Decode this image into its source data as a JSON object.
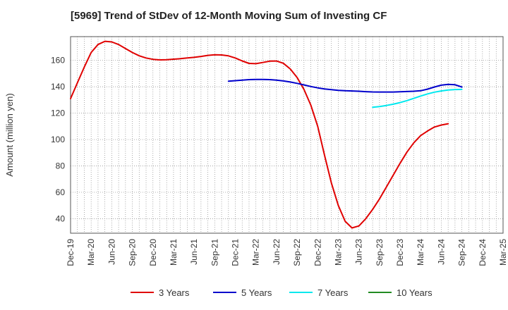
{
  "chart_data": {
    "type": "line",
    "title": "[5969]  Trend of StDev of 12-Month Moving Sum of Investing CF",
    "xlabel": "",
    "ylabel": "Amount (million yen)",
    "ylim": [
      29,
      178
    ],
    "yticks": [
      40,
      60,
      80,
      100,
      120,
      140,
      160
    ],
    "x_tick_labels": [
      "Dec-19",
      "Mar-20",
      "Jun-20",
      "Sep-20",
      "Dec-20",
      "Mar-21",
      "Jun-21",
      "Sep-21",
      "Dec-21",
      "Mar-22",
      "Jun-22",
      "Sep-22",
      "Dec-22",
      "Mar-23",
      "Jun-23",
      "Sep-23",
      "Dec-23",
      "Mar-24",
      "Jun-24",
      "Sep-24",
      "Dec-24",
      "Mar-25"
    ],
    "grid": true,
    "legend_position": "bottom",
    "series": [
      {
        "name": "3 Years",
        "color": "#e00000",
        "points": [
          [
            "Dec-19",
            131
          ],
          [
            "Jan-20",
            143
          ],
          [
            "Feb-20",
            155
          ],
          [
            "Mar-20",
            166
          ],
          [
            "Apr-20",
            172
          ],
          [
            "May-20",
            174.5
          ],
          [
            "Jun-20",
            174
          ],
          [
            "Jul-20",
            172
          ],
          [
            "Aug-20",
            169
          ],
          [
            "Sep-20",
            166
          ],
          [
            "Oct-20",
            163.5
          ],
          [
            "Nov-20",
            161.8
          ],
          [
            "Dec-20",
            160.8
          ],
          [
            "Jan-21",
            160.4
          ],
          [
            "Feb-21",
            160.5
          ],
          [
            "Mar-21",
            160.9
          ],
          [
            "Apr-21",
            161.3
          ],
          [
            "May-21",
            161.8
          ],
          [
            "Jun-21",
            162.3
          ],
          [
            "Jul-21",
            163
          ],
          [
            "Aug-21",
            163.8
          ],
          [
            "Sep-21",
            164.2
          ],
          [
            "Oct-21",
            164.1
          ],
          [
            "Nov-21",
            163.4
          ],
          [
            "Dec-21",
            161.8
          ],
          [
            "Jan-22",
            159.6
          ],
          [
            "Feb-22",
            157.7
          ],
          [
            "Mar-22",
            157.5
          ],
          [
            "Apr-22",
            158.4
          ],
          [
            "May-22",
            159.4
          ],
          [
            "Jun-22",
            159.5
          ],
          [
            "Jul-22",
            157.8
          ],
          [
            "Aug-22",
            153.5
          ],
          [
            "Sep-22",
            147
          ],
          [
            "Oct-22",
            138
          ],
          [
            "Nov-22",
            126
          ],
          [
            "Dec-22",
            110
          ],
          [
            "Jan-23",
            88
          ],
          [
            "Feb-23",
            67
          ],
          [
            "Mar-23",
            50
          ],
          [
            "Apr-23",
            38
          ],
          [
            "May-23",
            33
          ],
          [
            "Jun-23",
            34.5
          ],
          [
            "Jul-23",
            40
          ],
          [
            "Aug-23",
            47
          ],
          [
            "Sep-23",
            55
          ],
          [
            "Oct-23",
            64
          ],
          [
            "Nov-23",
            73
          ],
          [
            "Dec-23",
            82
          ],
          [
            "Jan-24",
            90.5
          ],
          [
            "Feb-24",
            97.5
          ],
          [
            "Mar-24",
            103
          ],
          [
            "Apr-24",
            106.5
          ],
          [
            "May-24",
            109.5
          ],
          [
            "Jun-24",
            111
          ],
          [
            "Jul-24",
            112
          ]
        ]
      },
      {
        "name": "5 Years",
        "color": "#0000cc",
        "points": [
          [
            "Nov-21",
            144.2
          ],
          [
            "Dec-21",
            144.6
          ],
          [
            "Jan-22",
            145
          ],
          [
            "Feb-22",
            145.4
          ],
          [
            "Mar-22",
            145.6
          ],
          [
            "Apr-22",
            145.6
          ],
          [
            "May-22",
            145.4
          ],
          [
            "Jun-22",
            145
          ],
          [
            "Jul-22",
            144.4
          ],
          [
            "Aug-22",
            143.6
          ],
          [
            "Sep-22",
            142.6
          ],
          [
            "Oct-22",
            141.4
          ],
          [
            "Nov-22",
            140.2
          ],
          [
            "Dec-22",
            139.2
          ],
          [
            "Jan-23",
            138.4
          ],
          [
            "Feb-23",
            137.8
          ],
          [
            "Mar-23",
            137.3
          ],
          [
            "Apr-23",
            137
          ],
          [
            "May-23",
            136.8
          ],
          [
            "Jun-23",
            136.6
          ],
          [
            "Jul-23",
            136.3
          ],
          [
            "Aug-23",
            136.1
          ],
          [
            "Sep-23",
            136
          ],
          [
            "Oct-23",
            136
          ],
          [
            "Nov-23",
            136
          ],
          [
            "Dec-23",
            136.2
          ],
          [
            "Jan-24",
            136.4
          ],
          [
            "Feb-24",
            136.6
          ],
          [
            "Mar-24",
            137
          ],
          [
            "Apr-24",
            138.2
          ],
          [
            "May-24",
            139.8
          ],
          [
            "Jun-24",
            141.2
          ],
          [
            "Jul-24",
            141.8
          ],
          [
            "Aug-24",
            141.5
          ],
          [
            "Sep-24",
            139.8
          ]
        ]
      },
      {
        "name": "7 Years",
        "color": "#00e8ee",
        "points": [
          [
            "Aug-23",
            124.5
          ],
          [
            "Sep-23",
            125
          ],
          [
            "Oct-23",
            125.8
          ],
          [
            "Nov-23",
            126.8
          ],
          [
            "Dec-23",
            128
          ],
          [
            "Jan-24",
            129.5
          ],
          [
            "Feb-24",
            131.2
          ],
          [
            "Mar-24",
            133
          ],
          [
            "Apr-24",
            134.6
          ],
          [
            "May-24",
            135.9
          ],
          [
            "Jun-24",
            136.8
          ],
          [
            "Jul-24",
            137.5
          ],
          [
            "Aug-24",
            137.9
          ],
          [
            "Sep-24",
            138
          ]
        ]
      },
      {
        "name": "10 Years",
        "color": "#228b22",
        "points": []
      }
    ]
  }
}
